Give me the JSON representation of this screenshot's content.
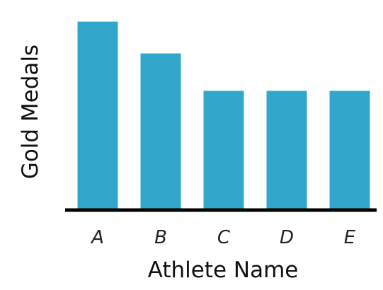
{
  "chart_data": {
    "type": "bar",
    "title": "",
    "xlabel": "Athlete Name",
    "ylabel": "Gold Medals",
    "categories": [
      "A",
      "B",
      "C",
      "D",
      "E"
    ],
    "values": [
      10,
      8.3,
      6.3,
      6.3,
      6.3
    ],
    "ylim": [
      0,
      10.4
    ],
    "grid": false,
    "show_y_ticks": false
  },
  "colors": {
    "bar": "#31a8cb",
    "axis": "#000000"
  }
}
